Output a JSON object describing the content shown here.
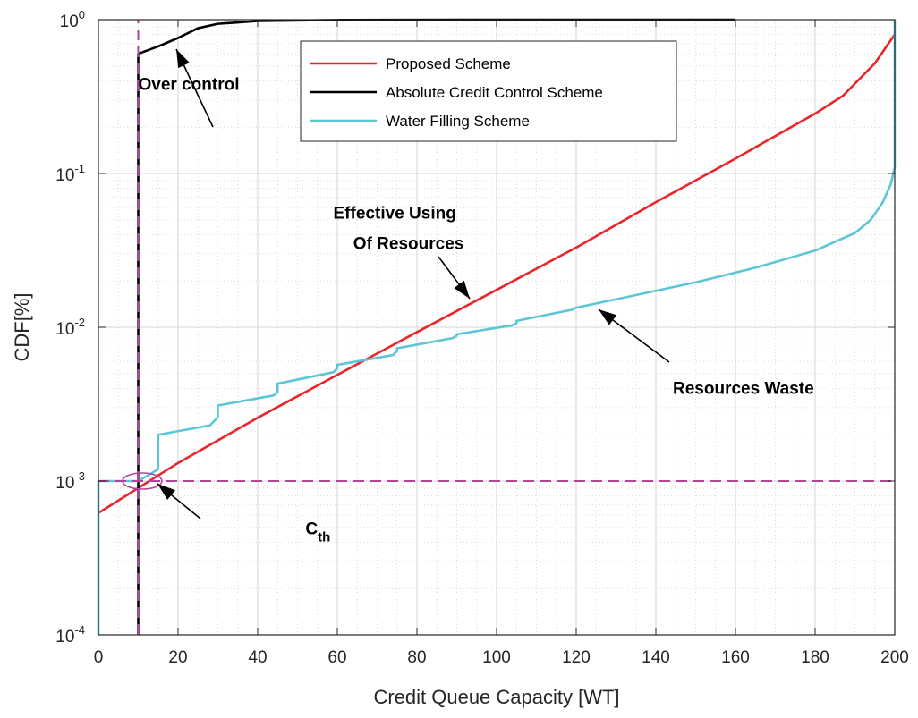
{
  "chart_data": {
    "type": "line",
    "xlabel": "Credit Queue Capacity [WT]",
    "ylabel": "CDF[%]",
    "xlim": [
      0,
      200
    ],
    "ylim": [
      0.0001,
      1
    ],
    "yscale": "log",
    "grid": true,
    "minor_grid": true,
    "legend_placement": "top-center",
    "x_ticks": [
      "0",
      "20",
      "40",
      "60",
      "80",
      "100",
      "120",
      "140",
      "160",
      "180",
      "200"
    ],
    "y_ticks": [
      {
        "base": "10",
        "exp": "-4"
      },
      {
        "base": "10",
        "exp": "-3"
      },
      {
        "base": "10",
        "exp": "-2"
      },
      {
        "base": "10",
        "exp": "-1"
      },
      {
        "base": "10",
        "exp": "0"
      }
    ],
    "series": [
      {
        "name": "Proposed Scheme",
        "color": "#e8262b",
        "style": "solid",
        "points": [
          [
            0,
            0.00062
          ],
          [
            20,
            0.00131
          ],
          [
            40,
            0.00258
          ],
          [
            60,
            0.0049
          ],
          [
            80,
            0.0093
          ],
          [
            100,
            0.0175
          ],
          [
            120,
            0.033
          ],
          [
            140,
            0.065
          ],
          [
            160,
            0.125
          ],
          [
            180,
            0.245
          ],
          [
            187,
            0.32
          ],
          [
            195,
            0.52
          ],
          [
            200,
            0.8
          ]
        ]
      },
      {
        "name": "Absolute Credit Control Scheme",
        "color": "#000000",
        "style": "solid",
        "points": [
          [
            10,
            0.0001
          ],
          [
            10,
            0.6
          ],
          [
            15,
            0.67
          ],
          [
            20,
            0.76
          ],
          [
            25,
            0.88
          ],
          [
            30,
            0.94
          ],
          [
            40,
            0.98
          ],
          [
            60,
            0.995
          ],
          [
            100,
            1.0
          ],
          [
            160,
            1.0
          ]
        ]
      },
      {
        "name": "Water Filling Scheme",
        "color": "#5cc6d6",
        "style": "solid",
        "points": [
          [
            0,
            0.0001
          ],
          [
            0,
            0.001
          ],
          [
            10,
            0.001
          ],
          [
            14,
            0.00115
          ],
          [
            15,
            0.0012
          ],
          [
            15,
            0.002
          ],
          [
            28,
            0.0023
          ],
          [
            30,
            0.0026
          ],
          [
            30,
            0.0031
          ],
          [
            44,
            0.0036
          ],
          [
            45,
            0.0038
          ],
          [
            45,
            0.0043
          ],
          [
            59,
            0.0051
          ],
          [
            60,
            0.0054
          ],
          [
            60,
            0.0057
          ],
          [
            74,
            0.0066
          ],
          [
            75,
            0.007
          ],
          [
            75,
            0.0073
          ],
          [
            89,
            0.0085
          ],
          [
            90,
            0.0088
          ],
          [
            90,
            0.009
          ],
          [
            104,
            0.0103
          ],
          [
            105,
            0.0106
          ],
          [
            105,
            0.011
          ],
          [
            119,
            0.013
          ],
          [
            120,
            0.0134
          ],
          [
            135,
            0.0162
          ],
          [
            150,
            0.0196
          ],
          [
            165,
            0.0244
          ],
          [
            180,
            0.0315
          ],
          [
            190,
            0.041
          ],
          [
            194,
            0.05
          ],
          [
            197,
            0.065
          ],
          [
            199,
            0.085
          ],
          [
            200,
            0.11
          ],
          [
            200,
            1.0
          ]
        ]
      },
      {
        "color": "#b0449e",
        "style": "dashed",
        "points": [
          [
            0,
            0.001
          ],
          [
            200,
            0.001
          ]
        ]
      },
      {
        "color": "#b0449e",
        "style": "dashed",
        "points": [
          [
            10,
            0.0001
          ],
          [
            10,
            1.0
          ]
        ]
      }
    ],
    "annotations": [
      {
        "text": "Over control",
        "x": 10,
        "y": 0.35,
        "arrow_to": [
          20,
          0.72
        ]
      },
      {
        "text": "Effective Using",
        "x": 59,
        "y": 0.051
      },
      {
        "text": "Of Resources",
        "x": 64,
        "y": 0.0322,
        "arrow_to": [
          95,
          0.0155
        ]
      },
      {
        "text": "Resources Waste",
        "x": 175,
        "y": 0.0037,
        "arrow_to": [
          128,
          0.0135
        ]
      },
      {
        "text": "C",
        "subscript": "th",
        "x": 52,
        "y": 0.00045,
        "arrow_to": [
          12,
          0.00098
        ]
      }
    ]
  }
}
